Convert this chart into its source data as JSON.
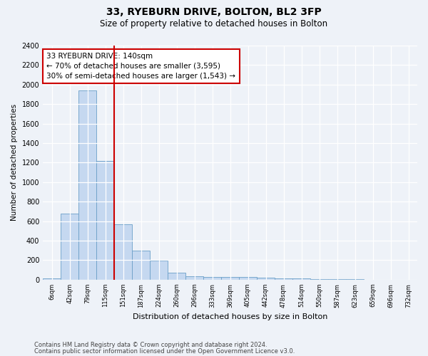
{
  "title1": "33, RYEBURN DRIVE, BOLTON, BL2 3FP",
  "title2": "Size of property relative to detached houses in Bolton",
  "xlabel": "Distribution of detached houses by size in Bolton",
  "ylabel": "Number of detached properties",
  "bar_labels": [
    "6sqm",
    "42sqm",
    "79sqm",
    "115sqm",
    "151sqm",
    "187sqm",
    "224sqm",
    "260sqm",
    "296sqm",
    "333sqm",
    "369sqm",
    "405sqm",
    "442sqm",
    "478sqm",
    "514sqm",
    "550sqm",
    "587sqm",
    "623sqm",
    "659sqm",
    "696sqm",
    "732sqm"
  ],
  "bar_values": [
    10,
    680,
    1940,
    1220,
    570,
    300,
    195,
    70,
    38,
    30,
    25,
    25,
    20,
    15,
    10,
    5,
    5,
    3,
    2,
    2,
    2
  ],
  "bar_color": "#c5d8f0",
  "bar_edge_color": "#6b9fc8",
  "vline_index": 3.5,
  "annotation_text": "33 RYEBURN DRIVE: 140sqm\n← 70% of detached houses are smaller (3,595)\n30% of semi-detached houses are larger (1,543) →",
  "annotation_box_color": "#ffffff",
  "annotation_box_edge_color": "#cc0000",
  "vline_color": "#cc0000",
  "ylim": [
    0,
    2400
  ],
  "yticks": [
    0,
    200,
    400,
    600,
    800,
    1000,
    1200,
    1400,
    1600,
    1800,
    2000,
    2200,
    2400
  ],
  "footer1": "Contains HM Land Registry data © Crown copyright and database right 2024.",
  "footer2": "Contains public sector information licensed under the Open Government Licence v3.0.",
  "bg_color": "#eef2f8",
  "plot_bg_color": "#eef2f8",
  "title_fontsize": 10,
  "subtitle_fontsize": 8.5
}
